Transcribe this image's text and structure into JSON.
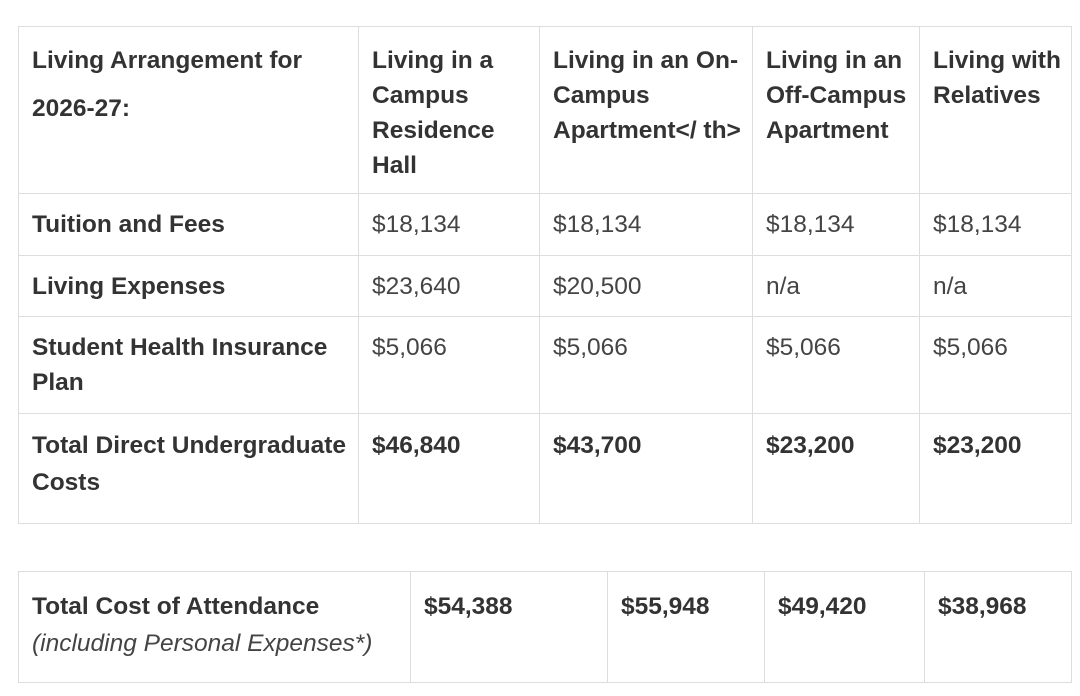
{
  "cost_table": {
    "header": {
      "label": "Living Arrangement for 2026-27:",
      "columns": [
        "Living in a Campus Residence Hall",
        "Living in an On-Campus Apartment</ th>",
        "Living in an Off-Campus Apartment",
        "Living with Relatives"
      ]
    },
    "rows": [
      {
        "label": "Tuition and Fees",
        "values": [
          "$18,134",
          "$18,134",
          "$18,134",
          "$18,134"
        ]
      },
      {
        "label": "Living Expenses",
        "values": [
          "$23,640",
          "$20,500",
          "n/a",
          "n/a"
        ]
      },
      {
        "label": "Student Health Insurance Plan",
        "values": [
          "$5,066",
          "$5,066",
          "$5,066",
          "$5,066"
        ]
      },
      {
        "label": "Total Direct Undergraduate Costs",
        "values": [
          "$46,840",
          "$43,700",
          "$23,200",
          "$23,200"
        ]
      }
    ]
  },
  "attendance_table": {
    "label": "Total Cost of Attendance",
    "note": "(including Personal Expenses*)",
    "values": [
      "$54,388",
      "$55,948",
      "$49,420",
      "$38,968"
    ]
  }
}
